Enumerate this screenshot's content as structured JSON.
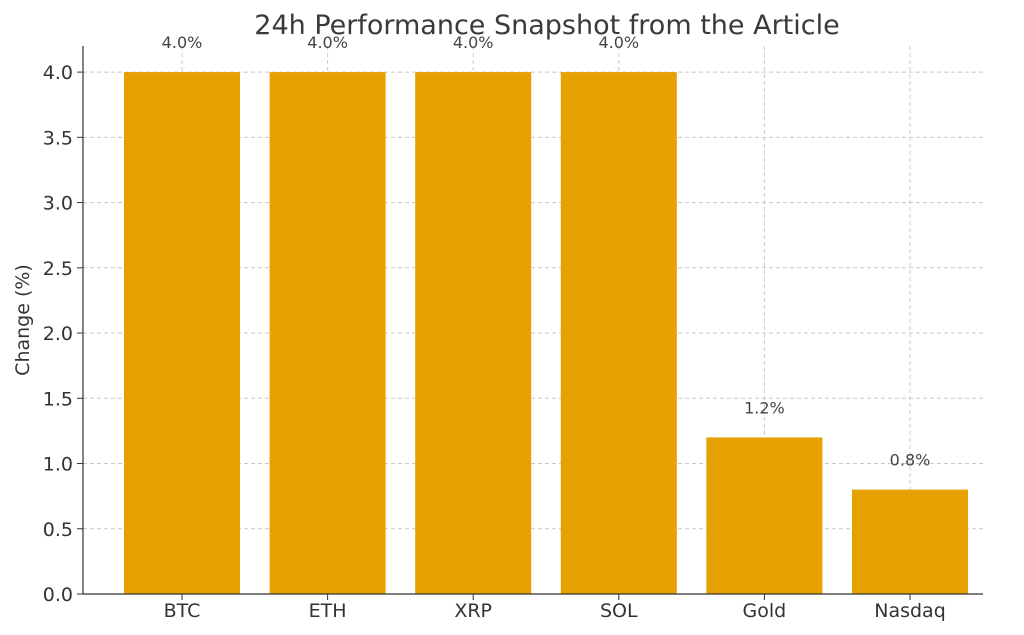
{
  "chart_data": {
    "type": "bar",
    "title": "24h Performance Snapshot from the Article",
    "xlabel": "",
    "ylabel": "Change (%)",
    "categories": [
      "BTC",
      "ETH",
      "XRP",
      "SOL",
      "Gold",
      "Nasdaq"
    ],
    "values": [
      4.0,
      4.0,
      4.0,
      4.0,
      1.2,
      0.8
    ],
    "data_labels": [
      "4.0%",
      "4.0%",
      "4.0%",
      "4.0%",
      "1.2%",
      "0.8%"
    ],
    "ylim": [
      0,
      4.2
    ],
    "yticks": [
      0.0,
      0.5,
      1.0,
      1.5,
      2.0,
      2.5,
      3.0,
      3.5,
      4.0
    ],
    "ytick_labels": [
      "0.0",
      "0.5",
      "1.0",
      "1.5",
      "2.0",
      "2.5",
      "3.0",
      "3.5",
      "4.0"
    ],
    "grid": true,
    "legend": "none",
    "bar_color": "#E6A100"
  }
}
